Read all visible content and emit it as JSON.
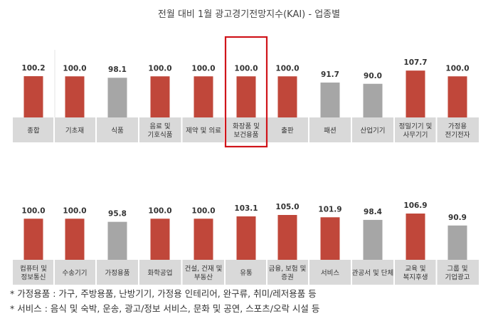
{
  "title": "전월 대비 1월 광고경기전망지수(KAI) - 업종별",
  "chart_data": [
    {
      "type": "bar",
      "categories": [
        [
          "종합"
        ],
        [
          "기초재"
        ],
        [
          "식품"
        ],
        [
          "음료 및",
          "기호식품"
        ],
        [
          "제약 및 의료"
        ],
        [
          "화장품 및",
          "보건용품"
        ],
        [
          "출판"
        ],
        [
          "패션"
        ],
        [
          "산업기기"
        ],
        [
          "정밀기기 및",
          "사무기기"
        ],
        [
          "가정용",
          "전기전자"
        ]
      ],
      "values": [
        100.2,
        100.0,
        98.1,
        100.0,
        100.0,
        100.0,
        100.0,
        91.7,
        90.0,
        107.7,
        100.0
      ],
      "value_labels": [
        "100.2",
        "100.0",
        "98.1",
        "100.0",
        "100.0",
        "100.0",
        "100.0",
        "91.7",
        "90.0",
        "107.7",
        "100.0"
      ],
      "bar_colors": [
        "#c0473a",
        "#c0473a",
        "#a6a6a6",
        "#c0473a",
        "#c0473a",
        "#c0473a",
        "#c0473a",
        "#a6a6a6",
        "#a6a6a6",
        "#c0473a",
        "#c0473a"
      ],
      "highlighted_index": 5
    },
    {
      "type": "bar",
      "categories": [
        [
          "컴퓨터 및",
          "정보통신"
        ],
        [
          "수송기기"
        ],
        [
          "가정용품"
        ],
        [
          "화학공업"
        ],
        [
          "건설, 건재 및",
          "부동산"
        ],
        [
          "유통"
        ],
        [
          "금융, 보험 및",
          "증권"
        ],
        [
          "서비스"
        ],
        [
          "관공서 및 단체"
        ],
        [
          "교육 및",
          "복지후생"
        ],
        [
          "그룹 및",
          "기업광고"
        ]
      ],
      "values": [
        100.0,
        100.0,
        95.8,
        100.0,
        100.0,
        103.1,
        105.0,
        101.9,
        98.4,
        106.9,
        90.9
      ],
      "value_labels": [
        "100.0",
        "100.0",
        "95.8",
        "100.0",
        "100.0",
        "103.1",
        "105.0",
        "101.9",
        "98.4",
        "106.9",
        "90.9"
      ],
      "bar_colors": [
        "#c0473a",
        "#c0473a",
        "#a6a6a6",
        "#c0473a",
        "#c0473a",
        "#c0473a",
        "#c0473a",
        "#c0473a",
        "#a6a6a6",
        "#c0473a",
        "#a6a6a6"
      ]
    }
  ],
  "colors": {
    "increase_or_flat": "#c0473a",
    "decrease": "#a6a6a6",
    "highlight_box": "#d0141a",
    "label_strip": "#d9d9d9"
  },
  "notes": [
    "* 가정용품 : 가구, 주방용품, 난방기기, 가정용 인테리어, 완구류, 취미/레저용품 등",
    "* 서비스 : 음식 및 숙박, 운송, 광고/정보 서비스, 문화 및 공연, 스포츠/오락 시설 등"
  ]
}
